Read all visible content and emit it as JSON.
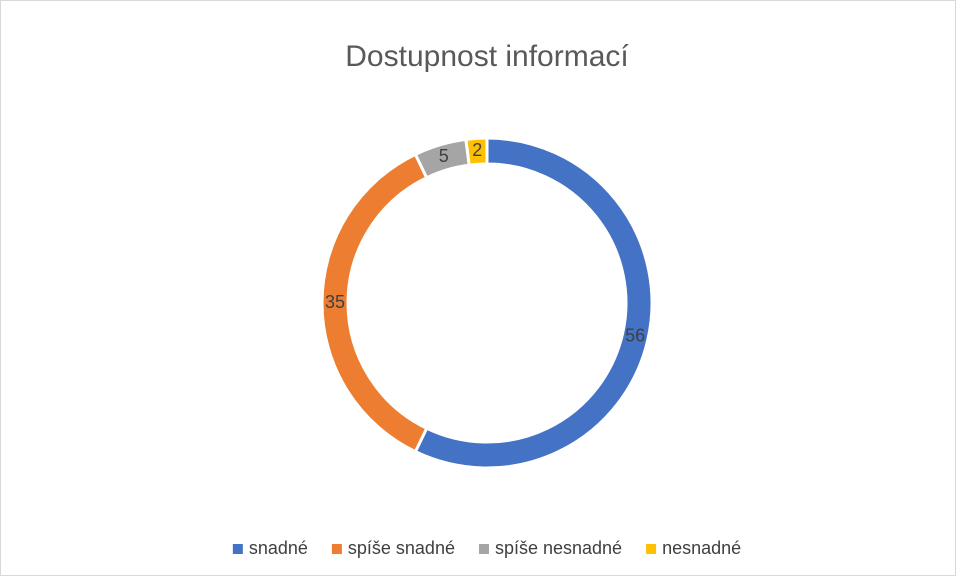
{
  "chart_data": {
    "type": "donut",
    "title": "Dostupnost informací",
    "categories": [
      "snadné",
      "spíše snadné",
      "spíše nesnadné",
      "nesnadné"
    ],
    "values": [
      56,
      35,
      5,
      2
    ],
    "colors": [
      "#4472c4",
      "#ed7d31",
      "#a5a5a5",
      "#ffc000"
    ],
    "legend": "bottom"
  }
}
